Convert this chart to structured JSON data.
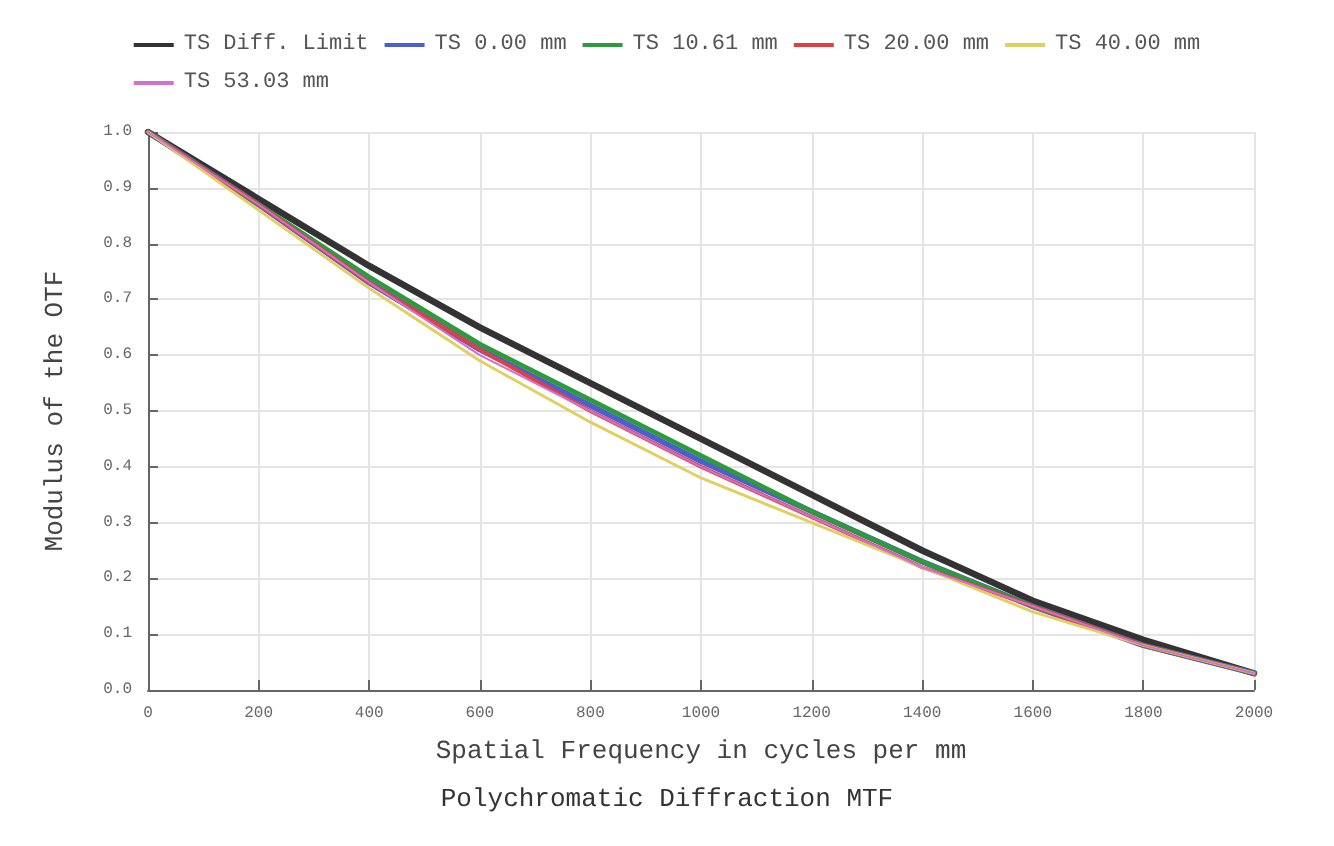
{
  "chart_data": {
    "type": "line",
    "title": "Polychromatic Diffraction MTF",
    "xlabel": "Spatial Frequency in cycles per mm",
    "ylabel": "Modulus of the OTF",
    "x": [
      0,
      200,
      400,
      600,
      800,
      1000,
      1200,
      1400,
      1600,
      1800,
      2000
    ],
    "series": [
      {
        "name": "TS Diff. Limit",
        "color": "#333333",
        "values": [
          1,
          0.88,
          0.76,
          0.65,
          0.55,
          0.45,
          0.35,
          0.25,
          0.16,
          0.09,
          0.03
        ]
      },
      {
        "name": "TS 0.00 mm",
        "color": "#4a5fd0",
        "values": [
          1,
          0.87,
          0.73,
          0.61,
          0.51,
          0.41,
          0.32,
          0.23,
          0.15,
          0.08,
          0.03
        ]
      },
      {
        "name": "TS 10.61 mm",
        "color": "#2e9a3c",
        "values": [
          1,
          0.87,
          0.74,
          0.62,
          0.52,
          0.42,
          0.32,
          0.23,
          0.15,
          0.08,
          0.03
        ]
      },
      {
        "name": "TS 20.00 mm",
        "color": "#e04040",
        "values": [
          1,
          0.87,
          0.73,
          0.61,
          0.5,
          0.4,
          0.31,
          0.22,
          0.15,
          0.08,
          0.03
        ]
      },
      {
        "name": "TS 40.00 mm",
        "color": "#e0d060",
        "values": [
          1,
          0.86,
          0.72,
          0.59,
          0.48,
          0.38,
          0.3,
          0.22,
          0.14,
          0.08,
          0.03
        ]
      },
      {
        "name": "TS 53.03 mm",
        "color": "#d070d0",
        "values": [
          1,
          0.87,
          0.73,
          0.6,
          0.5,
          0.4,
          0.31,
          0.22,
          0.15,
          0.08,
          0.03
        ]
      }
    ],
    "xlim": [
      0,
      2000
    ],
    "xticks": [
      0,
      200,
      400,
      600,
      800,
      1000,
      1200,
      1400,
      1600,
      1800,
      2000
    ],
    "ylim": [
      0,
      1
    ],
    "yticks": [
      {
        "value": 0,
        "label": "0.0"
      },
      {
        "value": 0.1,
        "label": "0.1"
      },
      {
        "value": 0.2,
        "label": "0.2"
      },
      {
        "value": 0.3,
        "label": "0.3"
      },
      {
        "value": 0.4,
        "label": "0.4"
      },
      {
        "value": 0.5,
        "label": "0.5"
      },
      {
        "value": 0.6,
        "label": "0.6"
      },
      {
        "value": 0.7,
        "label": "0.7"
      },
      {
        "value": 0.8,
        "label": "0.8"
      },
      {
        "value": 0.9,
        "label": "0.9"
      },
      {
        "value": 1,
        "label": "1.0"
      }
    ],
    "grid": true,
    "legend": "top",
    "marker": "none",
    "line_style": "solid"
  }
}
